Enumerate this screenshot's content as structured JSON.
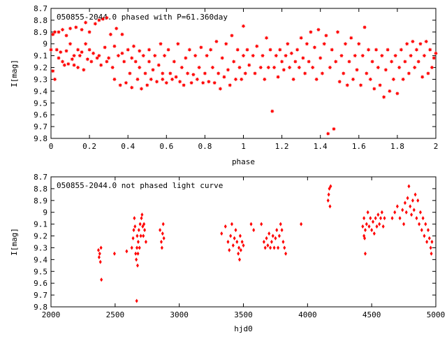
{
  "marker_color": "#ff0000",
  "chart_data": [
    {
      "type": "scatter",
      "title": "050855-2044.0 phased with P=61.360day",
      "xlabel": "phase",
      "ylabel": "I[mag]",
      "xlim": [
        0,
        2
      ],
      "ylim": [
        8.7,
        9.8
      ],
      "y_inverted": true,
      "x_ticks": [
        "0",
        "0.2",
        "0.4",
        "0.6",
        "0.8",
        "1",
        "1.2",
        "1.4",
        "1.6",
        "1.8",
        "2"
      ],
      "y_ticks": [
        "8.7",
        "8.8",
        "8.9",
        "9",
        "9.1",
        "9.2",
        "9.3",
        "9.4",
        "9.5",
        "9.6",
        "9.7",
        "9.8"
      ],
      "marker": "star",
      "points": [
        [
          0.0,
          9.05
        ],
        [
          0.01,
          8.92
        ],
        [
          0.01,
          9.23
        ],
        [
          0.02,
          8.9
        ],
        [
          0.02,
          9.3
        ],
        [
          0.03,
          9.05
        ],
        [
          0.04,
          8.9
        ],
        [
          0.04,
          9.12
        ],
        [
          0.05,
          9.07
        ],
        [
          0.06,
          8.88
        ],
        [
          0.06,
          9.15
        ],
        [
          0.07,
          9.18
        ],
        [
          0.08,
          9.06
        ],
        [
          0.08,
          8.93
        ],
        [
          0.09,
          9.17
        ],
        [
          0.1,
          9.0
        ],
        [
          0.1,
          8.87
        ],
        [
          0.11,
          9.13
        ],
        [
          0.12,
          9.1
        ],
        [
          0.12,
          9.18
        ],
        [
          0.13,
          8.86
        ],
        [
          0.14,
          9.05
        ],
        [
          0.14,
          9.2
        ],
        [
          0.15,
          9.1
        ],
        [
          0.16,
          8.88
        ],
        [
          0.16,
          9.07
        ],
        [
          0.17,
          9.22
        ],
        [
          0.18,
          9.0
        ],
        [
          0.18,
          8.82
        ],
        [
          0.19,
          9.13
        ],
        [
          0.2,
          9.05
        ],
        [
          0.2,
          8.9
        ],
        [
          0.21,
          9.15
        ],
        [
          0.22,
          9.08
        ],
        [
          0.23,
          8.83
        ],
        [
          0.24,
          9.12
        ],
        [
          0.25,
          8.8
        ],
        [
          0.25,
          9.1
        ],
        [
          0.26,
          9.18
        ],
        [
          0.27,
          8.79
        ],
        [
          0.28,
          9.03
        ],
        [
          0.29,
          9.15
        ],
        [
          0.29,
          8.78
        ],
        [
          0.3,
          9.12
        ],
        [
          0.31,
          8.92
        ],
        [
          0.32,
          9.2
        ],
        [
          0.33,
          9.02
        ],
        [
          0.33,
          9.3
        ],
        [
          0.34,
          8.87
        ],
        [
          0.35,
          9.1
        ],
        [
          0.36,
          9.35
        ],
        [
          0.37,
          9.08
        ],
        [
          0.37,
          8.92
        ],
        [
          0.38,
          9.15
        ],
        [
          0.39,
          9.33
        ],
        [
          0.4,
          9.05
        ],
        [
          0.41,
          9.25
        ],
        [
          0.42,
          9.12
        ],
        [
          0.42,
          9.37
        ],
        [
          0.43,
          9.02
        ],
        [
          0.44,
          9.15
        ],
        [
          0.45,
          9.3
        ],
        [
          0.46,
          9.06
        ],
        [
          0.46,
          9.2
        ],
        [
          0.47,
          9.38
        ],
        [
          0.48,
          9.1
        ],
        [
          0.49,
          9.25
        ],
        [
          0.5,
          9.35
        ],
        [
          0.51,
          9.15
        ],
        [
          0.51,
          9.05
        ],
        [
          0.52,
          9.3
        ],
        [
          0.53,
          9.22
        ],
        [
          0.54,
          9.1
        ],
        [
          0.55,
          9.32
        ],
        [
          0.56,
          9.18
        ],
        [
          0.57,
          9.0
        ],
        [
          0.58,
          9.3
        ],
        [
          0.58,
          9.25
        ],
        [
          0.59,
          9.1
        ],
        [
          0.6,
          9.33
        ],
        [
          0.61,
          9.05
        ],
        [
          0.62,
          9.25
        ],
        [
          0.63,
          9.3
        ],
        [
          0.64,
          9.15
        ],
        [
          0.65,
          9.28
        ],
        [
          0.66,
          9.0
        ],
        [
          0.67,
          9.32
        ],
        [
          0.68,
          9.2
        ],
        [
          0.69,
          9.35
        ],
        [
          0.7,
          9.12
        ],
        [
          0.71,
          9.25
        ],
        [
          0.72,
          9.05
        ],
        [
          0.73,
          9.33
        ],
        [
          0.74,
          9.26
        ],
        [
          0.75,
          9.1
        ],
        [
          0.76,
          9.3
        ],
        [
          0.77,
          9.2
        ],
        [
          0.78,
          9.03
        ],
        [
          0.79,
          9.33
        ],
        [
          0.8,
          9.25
        ],
        [
          0.81,
          9.1
        ],
        [
          0.82,
          9.32
        ],
        [
          0.83,
          9.05
        ],
        [
          0.84,
          9.2
        ],
        [
          0.85,
          9.33
        ],
        [
          0.86,
          8.98
        ],
        [
          0.87,
          9.25
        ],
        [
          0.88,
          9.38
        ],
        [
          0.89,
          9.12
        ],
        [
          0.9,
          9.28
        ],
        [
          0.91,
          9.0
        ],
        [
          0.92,
          9.22
        ],
        [
          0.93,
          9.35
        ],
        [
          0.94,
          8.93
        ],
        [
          0.95,
          9.15
        ],
        [
          0.96,
          9.3
        ],
        [
          0.97,
          9.05
        ],
        [
          0.98,
          9.2
        ],
        [
          0.99,
          9.3
        ],
        [
          1.0,
          8.85
        ],
        [
          1.0,
          9.1
        ],
        [
          1.01,
          9.25
        ],
        [
          1.02,
          9.05
        ],
        [
          1.03,
          9.18
        ],
        [
          1.05,
          9.1
        ],
        [
          1.06,
          9.25
        ],
        [
          1.07,
          9.02
        ],
        [
          1.09,
          9.2
        ],
        [
          1.1,
          9.1
        ],
        [
          1.11,
          9.3
        ],
        [
          1.12,
          8.95
        ],
        [
          1.13,
          9.2
        ],
        [
          1.14,
          9.05
        ],
        [
          1.15,
          9.57
        ],
        [
          1.16,
          9.2
        ],
        [
          1.17,
          9.1
        ],
        [
          1.18,
          9.28
        ],
        [
          1.19,
          9.05
        ],
        [
          1.2,
          9.15
        ],
        [
          1.21,
          9.22
        ],
        [
          1.22,
          9.1
        ],
        [
          1.23,
          9.0
        ],
        [
          1.24,
          9.2
        ],
        [
          1.25,
          9.08
        ],
        [
          1.26,
          9.3
        ],
        [
          1.27,
          9.15
        ],
        [
          1.28,
          9.05
        ],
        [
          1.29,
          9.2
        ],
        [
          1.3,
          8.95
        ],
        [
          1.31,
          9.12
        ],
        [
          1.32,
          9.25
        ],
        [
          1.33,
          9.0
        ],
        [
          1.34,
          9.15
        ],
        [
          1.35,
          8.9
        ],
        [
          1.36,
          9.2
        ],
        [
          1.37,
          9.03
        ],
        [
          1.38,
          9.3
        ],
        [
          1.39,
          8.88
        ],
        [
          1.4,
          9.12
        ],
        [
          1.41,
          9.25
        ],
        [
          1.42,
          9.0
        ],
        [
          1.43,
          8.93
        ],
        [
          1.44,
          9.76
        ],
        [
          1.45,
          9.2
        ],
        [
          1.46,
          9.05
        ],
        [
          1.47,
          9.72
        ],
        [
          1.48,
          9.15
        ],
        [
          1.49,
          8.9
        ],
        [
          1.5,
          9.32
        ],
        [
          1.51,
          9.1
        ],
        [
          1.52,
          9.25
        ],
        [
          1.53,
          9.0
        ],
        [
          1.54,
          9.35
        ],
        [
          1.55,
          9.15
        ],
        [
          1.56,
          8.95
        ],
        [
          1.57,
          9.3
        ],
        [
          1.58,
          9.1
        ],
        [
          1.59,
          9.22
        ],
        [
          1.6,
          9.0
        ],
        [
          1.61,
          9.35
        ],
        [
          1.62,
          9.1
        ],
        [
          1.63,
          8.86
        ],
        [
          1.64,
          9.25
        ],
        [
          1.65,
          9.05
        ],
        [
          1.66,
          9.3
        ],
        [
          1.67,
          9.15
        ],
        [
          1.68,
          9.38
        ],
        [
          1.69,
          9.05
        ],
        [
          1.7,
          9.2
        ],
        [
          1.71,
          9.35
        ],
        [
          1.72,
          9.1
        ],
        [
          1.73,
          9.45
        ],
        [
          1.74,
          9.22
        ],
        [
          1.75,
          9.05
        ],
        [
          1.76,
          9.4
        ],
        [
          1.77,
          9.15
        ],
        [
          1.78,
          9.3
        ],
        [
          1.79,
          9.1
        ],
        [
          1.8,
          9.42
        ],
        [
          1.81,
          9.2
        ],
        [
          1.82,
          9.05
        ],
        [
          1.83,
          9.3
        ],
        [
          1.84,
          9.15
        ],
        [
          1.85,
          9.0
        ],
        [
          1.86,
          9.25
        ],
        [
          1.87,
          9.1
        ],
        [
          1.88,
          8.98
        ],
        [
          1.89,
          9.2
        ],
        [
          1.9,
          9.05
        ],
        [
          1.91,
          9.15
        ],
        [
          1.92,
          9.0
        ],
        [
          1.93,
          9.28
        ],
        [
          1.94,
          9.1
        ],
        [
          1.95,
          8.98
        ],
        [
          1.96,
          9.25
        ],
        [
          1.97,
          9.05
        ],
        [
          1.98,
          9.2
        ],
        [
          1.99,
          9.12
        ],
        [
          2.0,
          9.08
        ]
      ]
    },
    {
      "type": "scatter",
      "title": "050855-2044.0 not phased light curve",
      "xlabel": "hjd0",
      "ylabel": "I[mag]",
      "xlim": [
        2000,
        5000
      ],
      "ylim": [
        8.7,
        9.8
      ],
      "y_inverted": true,
      "x_ticks": [
        "2000",
        "2500",
        "3000",
        "3500",
        "4000",
        "4500",
        "5000"
      ],
      "y_ticks": [
        "8.7",
        "8.8",
        "8.9",
        "9",
        "9.1",
        "9.2",
        "9.3",
        "9.4",
        "9.5",
        "9.6",
        "9.7",
        "9.8"
      ],
      "marker": "diamond",
      "points": [
        [
          2370,
          9.32
        ],
        [
          2375,
          9.38
        ],
        [
          2380,
          9.35
        ],
        [
          2385,
          9.42
        ],
        [
          2390,
          9.3
        ],
        [
          2393,
          9.57
        ],
        [
          2495,
          9.35
        ],
        [
          2590,
          9.33
        ],
        [
          2630,
          9.3
        ],
        [
          2640,
          9.22
        ],
        [
          2645,
          9.15
        ],
        [
          2650,
          9.05
        ],
        [
          2655,
          9.12
        ],
        [
          2660,
          9.35
        ],
        [
          2665,
          9.4
        ],
        [
          2668,
          9.75
        ],
        [
          2670,
          9.3
        ],
        [
          2672,
          9.2
        ],
        [
          2675,
          9.45
        ],
        [
          2678,
          9.35
        ],
        [
          2680,
          9.25
        ],
        [
          2685,
          9.15
        ],
        [
          2690,
          9.3
        ],
        [
          2695,
          9.1
        ],
        [
          2700,
          9.2
        ],
        [
          2705,
          9.05
        ],
        [
          2710,
          9.02
        ],
        [
          2715,
          9.12
        ],
        [
          2720,
          9.2
        ],
        [
          2725,
          9.1
        ],
        [
          2730,
          9.15
        ],
        [
          2740,
          9.25
        ],
        [
          2850,
          9.15
        ],
        [
          2860,
          9.25
        ],
        [
          2865,
          9.3
        ],
        [
          2870,
          9.18
        ],
        [
          2875,
          9.1
        ],
        [
          2880,
          9.22
        ],
        [
          3330,
          9.18
        ],
        [
          3360,
          9.12
        ],
        [
          3380,
          9.25
        ],
        [
          3390,
          9.32
        ],
        [
          3400,
          9.2
        ],
        [
          3410,
          9.1
        ],
        [
          3420,
          9.28
        ],
        [
          3430,
          9.22
        ],
        [
          3440,
          9.15
        ],
        [
          3450,
          9.25
        ],
        [
          3460,
          9.35
        ],
        [
          3465,
          9.3
        ],
        [
          3470,
          9.4
        ],
        [
          3475,
          9.2
        ],
        [
          3480,
          9.32
        ],
        [
          3490,
          9.25
        ],
        [
          3500,
          9.28
        ],
        [
          3560,
          9.1
        ],
        [
          3580,
          9.15
        ],
        [
          3640,
          9.1
        ],
        [
          3660,
          9.25
        ],
        [
          3670,
          9.3
        ],
        [
          3680,
          9.22
        ],
        [
          3690,
          9.28
        ],
        [
          3700,
          9.18
        ],
        [
          3710,
          9.3
        ],
        [
          3720,
          9.25
        ],
        [
          3730,
          9.2
        ],
        [
          3740,
          9.3
        ],
        [
          3750,
          9.22
        ],
        [
          3760,
          9.15
        ],
        [
          3770,
          9.3
        ],
        [
          3780,
          9.2
        ],
        [
          3790,
          9.1
        ],
        [
          3800,
          9.15
        ],
        [
          3810,
          9.25
        ],
        [
          3820,
          9.3
        ],
        [
          3830,
          9.35
        ],
        [
          3950,
          9.1
        ],
        [
          4160,
          8.9
        ],
        [
          4165,
          8.85
        ],
        [
          4170,
          8.8
        ],
        [
          4175,
          8.95
        ],
        [
          4180,
          8.78
        ],
        [
          4430,
          9.12
        ],
        [
          4440,
          9.05
        ],
        [
          4450,
          9.15
        ],
        [
          4460,
          9.1
        ],
        [
          4470,
          9.0
        ],
        [
          4480,
          9.12
        ],
        [
          4490,
          9.05
        ],
        [
          4500,
          9.15
        ],
        [
          4510,
          9.08
        ],
        [
          4520,
          9.18
        ],
        [
          4530,
          9.05
        ],
        [
          4540,
          9.12
        ],
        [
          4550,
          9.02
        ],
        [
          4560,
          9.1
        ],
        [
          4570,
          9.05
        ],
        [
          4580,
          9.0
        ],
        [
          4590,
          9.12
        ],
        [
          4600,
          9.05
        ],
        [
          4440,
          9.2
        ],
        [
          4445,
          9.22
        ],
        [
          4450,
          9.35
        ],
        [
          4660,
          9.05
        ],
        [
          4680,
          9.0
        ],
        [
          4700,
          8.95
        ],
        [
          4720,
          9.05
        ],
        [
          4740,
          8.98
        ],
        [
          4750,
          9.1
        ],
        [
          4760,
          8.92
        ],
        [
          4770,
          9.0
        ],
        [
          4780,
          8.88
        ],
        [
          4790,
          8.78
        ],
        [
          4800,
          8.95
        ],
        [
          4810,
          9.02
        ],
        [
          4820,
          8.9
        ],
        [
          4830,
          8.98
        ],
        [
          4840,
          8.85
        ],
        [
          4850,
          9.05
        ],
        [
          4860,
          8.9
        ],
        [
          4870,
          9.1
        ],
        [
          4880,
          9.0
        ],
        [
          4890,
          9.15
        ],
        [
          4900,
          9.05
        ],
        [
          4910,
          9.2
        ],
        [
          4920,
          9.1
        ],
        [
          4930,
          9.25
        ],
        [
          4940,
          9.15
        ],
        [
          4950,
          9.22
        ],
        [
          4960,
          9.3
        ],
        [
          4965,
          9.35
        ],
        [
          4970,
          9.25
        ]
      ]
    }
  ]
}
